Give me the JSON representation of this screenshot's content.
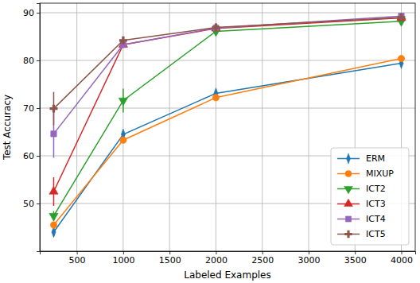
{
  "chart_data": {
    "type": "line",
    "x_label": "Labeled Examples",
    "y_label": "Test Accuracy",
    "x": [
      250,
      1000,
      2000,
      4000
    ],
    "series": [
      {
        "name": "ERM",
        "color": "#1f77b4",
        "marker": "thin_diamond",
        "values": [
          44.0,
          64.5,
          73.1,
          79.4
        ],
        "errors": [
          0.8,
          0.6,
          0.3,
          0.3
        ]
      },
      {
        "name": "MIXUP",
        "color": "#ff7f0e",
        "marker": "circle",
        "values": [
          45.5,
          63.3,
          72.2,
          80.4
        ],
        "errors": [
          0.5,
          0.5,
          0.3,
          0.3
        ]
      },
      {
        "name": "ICT2",
        "color": "#2ca02c",
        "marker": "triangle_down",
        "values": [
          47.4,
          71.6,
          86.1,
          88.2
        ],
        "errors": [
          1.0,
          2.5,
          0.4,
          0.4
        ]
      },
      {
        "name": "ICT3",
        "color": "#d62728",
        "marker": "triangle_up",
        "values": [
          52.5,
          83.3,
          86.7,
          88.9
        ],
        "errors": [
          3.0,
          0.5,
          0.3,
          0.3
        ]
      },
      {
        "name": "ICT4",
        "color": "#9467bd",
        "marker": "square",
        "values": [
          64.6,
          83.3,
          86.8,
          89.3
        ],
        "errors": [
          5.0,
          0.7,
          0.3,
          0.3
        ]
      },
      {
        "name": "ICT5",
        "color": "#8c564b",
        "marker": "plus",
        "values": [
          69.9,
          84.2,
          86.9,
          89.0
        ],
        "errors": [
          3.5,
          0.5,
          0.3,
          0.3
        ]
      }
    ],
    "xlim": [
      100,
      4150
    ],
    "xticks": [
      500,
      1000,
      1500,
      2000,
      2500,
      3000,
      3500,
      4000
    ],
    "ylim": [
      40,
      92
    ],
    "yticks": [
      50,
      60,
      70,
      80,
      90
    ],
    "grid": true,
    "legend": "lower right"
  }
}
